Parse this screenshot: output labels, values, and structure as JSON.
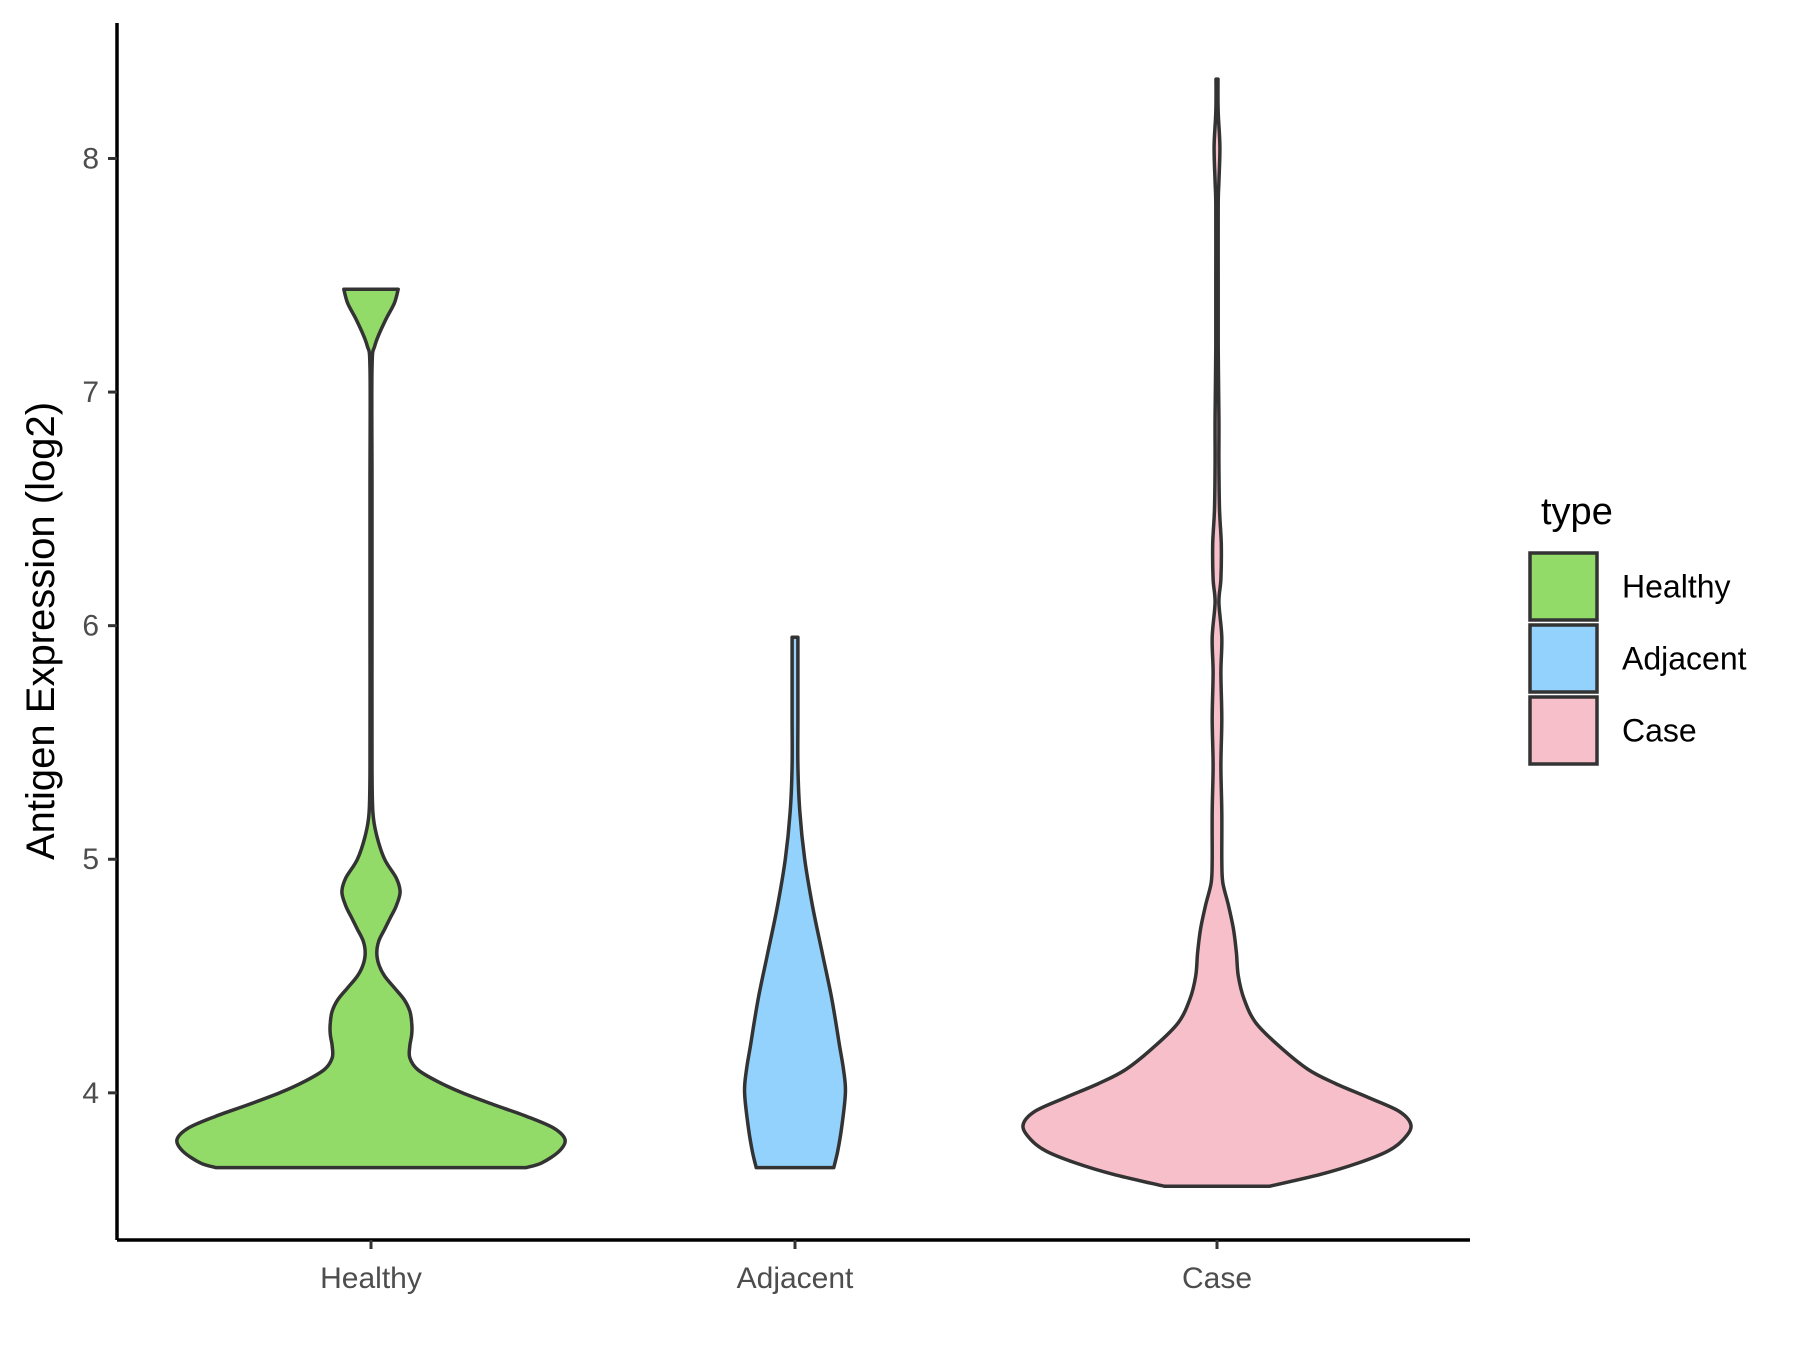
{
  "chart_data": {
    "type": "violin",
    "xlabel": "",
    "ylabel": "Antigen Expression (log2)",
    "ylim": [
      3.37,
      8.58
    ],
    "yticks": [
      4,
      5,
      6,
      7,
      8
    ],
    "categories": [
      "Healthy",
      "Adjacent",
      "Case"
    ],
    "legend": {
      "title": "type",
      "placement": "right",
      "entries": [
        "Healthy",
        "Adjacent",
        "Case"
      ]
    },
    "grid": false,
    "series": [
      {
        "name": "Healthy",
        "color": "#93db69",
        "min": 3.68,
        "max": 7.44,
        "density": [
          [
            3.68,
            0.8
          ],
          [
            3.7,
            0.88
          ],
          [
            3.75,
            0.97
          ],
          [
            3.8,
            1.0
          ],
          [
            3.85,
            0.94
          ],
          [
            3.9,
            0.8
          ],
          [
            3.95,
            0.63
          ],
          [
            4.0,
            0.47
          ],
          [
            4.05,
            0.34
          ],
          [
            4.1,
            0.24
          ],
          [
            4.15,
            0.2
          ],
          [
            4.2,
            0.2
          ],
          [
            4.25,
            0.21
          ],
          [
            4.3,
            0.21
          ],
          [
            4.35,
            0.2
          ],
          [
            4.4,
            0.17
          ],
          [
            4.45,
            0.12
          ],
          [
            4.5,
            0.07
          ],
          [
            4.55,
            0.04
          ],
          [
            4.6,
            0.03
          ],
          [
            4.65,
            0.04
          ],
          [
            4.7,
            0.07
          ],
          [
            4.75,
            0.1
          ],
          [
            4.8,
            0.13
          ],
          [
            4.86,
            0.15
          ],
          [
            4.92,
            0.13
          ],
          [
            5.0,
            0.07
          ],
          [
            5.1,
            0.03
          ],
          [
            5.2,
            0.01
          ],
          [
            5.4,
            0.005
          ],
          [
            6.0,
            0.005
          ],
          [
            6.6,
            0.005
          ],
          [
            7.1,
            0.005
          ],
          [
            7.2,
            0.02
          ],
          [
            7.3,
            0.07
          ],
          [
            7.38,
            0.12
          ],
          [
            7.44,
            0.14
          ]
        ]
      },
      {
        "name": "Adjacent",
        "color": "#92d2fd",
        "min": 3.68,
        "max": 5.95,
        "density": [
          [
            3.68,
            0.2
          ],
          [
            3.75,
            0.22
          ],
          [
            3.85,
            0.24
          ],
          [
            4.0,
            0.26
          ],
          [
            4.1,
            0.25
          ],
          [
            4.2,
            0.23
          ],
          [
            4.4,
            0.19
          ],
          [
            4.6,
            0.14
          ],
          [
            4.8,
            0.09
          ],
          [
            5.0,
            0.05
          ],
          [
            5.2,
            0.025
          ],
          [
            5.4,
            0.015
          ],
          [
            5.6,
            0.015
          ],
          [
            5.8,
            0.015
          ],
          [
            5.95,
            0.015
          ]
        ]
      },
      {
        "name": "Case",
        "color": "#f7bfca",
        "min": 3.6,
        "max": 8.34,
        "density": [
          [
            3.6,
            0.27
          ],
          [
            3.65,
            0.53
          ],
          [
            3.7,
            0.73
          ],
          [
            3.75,
            0.88
          ],
          [
            3.8,
            0.96
          ],
          [
            3.86,
            1.0
          ],
          [
            3.92,
            0.94
          ],
          [
            3.98,
            0.78
          ],
          [
            4.04,
            0.61
          ],
          [
            4.1,
            0.47
          ],
          [
            4.2,
            0.32
          ],
          [
            4.3,
            0.2
          ],
          [
            4.4,
            0.14
          ],
          [
            4.5,
            0.11
          ],
          [
            4.6,
            0.1
          ],
          [
            4.7,
            0.085
          ],
          [
            4.8,
            0.06
          ],
          [
            4.9,
            0.03
          ],
          [
            5.0,
            0.025
          ],
          [
            5.2,
            0.025
          ],
          [
            5.4,
            0.02
          ],
          [
            5.6,
            0.025
          ],
          [
            5.8,
            0.02
          ],
          [
            5.95,
            0.025
          ],
          [
            6.1,
            0.01
          ],
          [
            6.2,
            0.02
          ],
          [
            6.35,
            0.022
          ],
          [
            6.5,
            0.013
          ],
          [
            6.7,
            0.01
          ],
          [
            6.9,
            0.01
          ],
          [
            7.2,
            0.006
          ],
          [
            7.5,
            0.006
          ],
          [
            7.8,
            0.006
          ],
          [
            7.9,
            0.01
          ],
          [
            8.05,
            0.015
          ],
          [
            8.2,
            0.006
          ],
          [
            8.34,
            0.005
          ]
        ]
      }
    ]
  }
}
